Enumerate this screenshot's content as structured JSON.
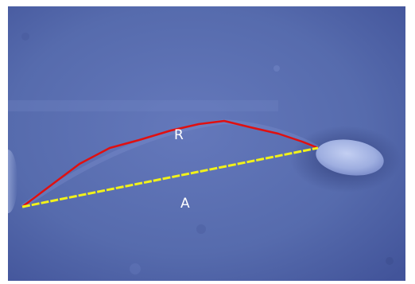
{
  "image": {
    "labels": {
      "arc_label": "R",
      "chord_label": "A"
    },
    "colors": {
      "background_blue": "#5a6fb0",
      "background_dark": "#3f4f92",
      "cell_head": "#a7b6e6",
      "arc_trace": "#e01010",
      "chord_line": "#f2f21a",
      "label_text": "#ffffff"
    }
  }
}
